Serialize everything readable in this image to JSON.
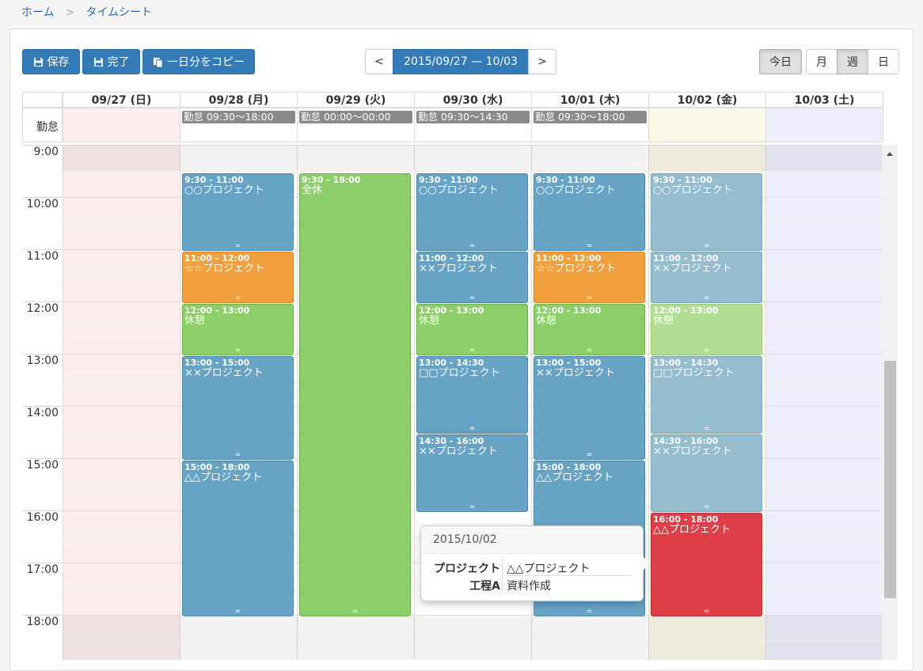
{
  "breadcrumb": {
    "home": "ホーム",
    "sep": ">",
    "current": "タイムシート"
  },
  "toolbar": {
    "save": "保存",
    "complete": "完了",
    "copy_day": "一日分をコピー"
  },
  "nav": {
    "prev": "<",
    "range": "2015/09/27 — 10/03",
    "next": ">"
  },
  "views": {
    "today": "今日",
    "month": "月",
    "week": "週",
    "day": "日",
    "active": "週"
  },
  "allday_label": "勤怠",
  "days": [
    {
      "label": "09/27 (日)",
      "allday": ""
    },
    {
      "label": "09/28 (月)",
      "allday": "勤怠 09:30〜18:00"
    },
    {
      "label": "09/29 (火)",
      "allday": "勤怠 00:00〜00:00"
    },
    {
      "label": "09/30 (水)",
      "allday": "勤怠 09:30〜14:30"
    },
    {
      "label": "10/01 (木)",
      "allday": "勤怠 09:30〜18:00"
    },
    {
      "label": "10/02 (金)",
      "allday": ""
    },
    {
      "label": "10/03 (土)",
      "allday": ""
    }
  ],
  "times": [
    "9:00",
    "10:00",
    "11:00",
    "12:00",
    "13:00",
    "14:00",
    "15:00",
    "16:00",
    "17:00",
    "18:00"
  ],
  "events": [
    {
      "day": 1,
      "start": 9.5,
      "end": 11,
      "time": "9:30 - 11:00",
      "name": "○○プロジェクト",
      "kind": "blue"
    },
    {
      "day": 1,
      "start": 11,
      "end": 12,
      "time": "11:00 - 12:00",
      "name": "☆☆プロジェクト",
      "kind": "orange"
    },
    {
      "day": 1,
      "start": 12,
      "end": 13,
      "time": "12:00 - 13:00",
      "name": "休憩",
      "kind": "green"
    },
    {
      "day": 1,
      "start": 13,
      "end": 15,
      "time": "13:00 - 15:00",
      "name": "××プロジェクト",
      "kind": "blue"
    },
    {
      "day": 1,
      "start": 15,
      "end": 18,
      "time": "15:00 - 18:00",
      "name": "△△プロジェクト",
      "kind": "blue"
    },
    {
      "day": 2,
      "start": 9.5,
      "end": 18,
      "time": "9:30 - 18:00",
      "name": "全休",
      "kind": "green"
    },
    {
      "day": 3,
      "start": 9.5,
      "end": 11,
      "time": "9:30 - 11:00",
      "name": "○○プロジェクト",
      "kind": "blue"
    },
    {
      "day": 3,
      "start": 11,
      "end": 12,
      "time": "11:00 - 12:00",
      "name": "××プロジェクト",
      "kind": "blue"
    },
    {
      "day": 3,
      "start": 12,
      "end": 13,
      "time": "12:00 - 13:00",
      "name": "休憩",
      "kind": "green"
    },
    {
      "day": 3,
      "start": 13,
      "end": 14.5,
      "time": "13:00 - 14:30",
      "name": "□□プロジェクト",
      "kind": "blue"
    },
    {
      "day": 3,
      "start": 14.5,
      "end": 16,
      "time": "14:30 - 16:00",
      "name": "××プロジェクト",
      "kind": "blue"
    },
    {
      "day": 4,
      "start": 9.5,
      "end": 11,
      "time": "9:30 - 11:00",
      "name": "○○プロジェクト",
      "kind": "blue"
    },
    {
      "day": 4,
      "start": 11,
      "end": 12,
      "time": "11:00 - 12:00",
      "name": "☆☆プロジェクト",
      "kind": "orange"
    },
    {
      "day": 4,
      "start": 12,
      "end": 13,
      "time": "12:00 - 13:00",
      "name": "休憩",
      "kind": "green"
    },
    {
      "day": 4,
      "start": 13,
      "end": 15,
      "time": "13:00 - 15:00",
      "name": "××プロジェクト",
      "kind": "blue"
    },
    {
      "day": 4,
      "start": 15,
      "end": 18,
      "time": "15:00 - 18:00",
      "name": "△△プロジェクト",
      "kind": "blue"
    },
    {
      "day": 5,
      "start": 9.5,
      "end": 11,
      "time": "9:30 - 11:00",
      "name": "○○プロジェクト",
      "kind": "lblue"
    },
    {
      "day": 5,
      "start": 11,
      "end": 12,
      "time": "11:00 - 12:00",
      "name": "××プロジェクト",
      "kind": "lblue"
    },
    {
      "day": 5,
      "start": 12,
      "end": 13,
      "time": "12:00 - 13:00",
      "name": "休憩",
      "kind": "lgreen"
    },
    {
      "day": 5,
      "start": 13,
      "end": 14.5,
      "time": "13:00 - 14:30",
      "name": "□□プロジェクト",
      "kind": "lblue"
    },
    {
      "day": 5,
      "start": 14.5,
      "end": 16,
      "time": "14:30 - 16:00",
      "name": "××プロジェクト",
      "kind": "lblue"
    },
    {
      "day": 5,
      "start": 16,
      "end": 18,
      "time": "16:00 - 18:00",
      "name": "△△プロジェクト",
      "kind": "red"
    }
  ],
  "event_colors": {
    "blue": "#67a3c4",
    "orange": "#f2a03d",
    "green": "#8dcd6a",
    "lblue": "#95bccf",
    "lgreen": "#b3dd93",
    "red": "#de3e48"
  },
  "day_colors": [
    "#fdeeee",
    "#ffffff",
    "#ffffff",
    "#ffffff",
    "#ffffff",
    "#fcf8e8",
    "#eeeefc"
  ],
  "popover": {
    "title": "2015/10/02",
    "rows": [
      {
        "label": "プロジェクト",
        "value": "△△プロジェクト"
      },
      {
        "label": "工程A",
        "value": "資料作成"
      }
    ]
  }
}
